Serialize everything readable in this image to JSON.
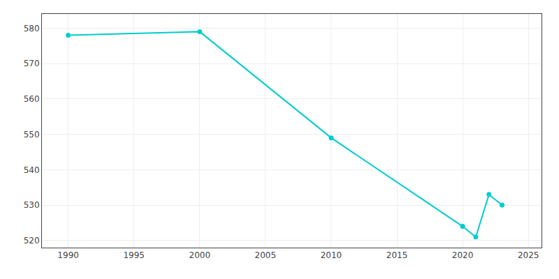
{
  "chart_data": {
    "type": "line",
    "x": [
      1990,
      2000,
      2010,
      2020,
      2021,
      2022,
      2023
    ],
    "values": [
      578,
      579,
      549,
      524,
      521,
      533,
      530
    ],
    "color": "#00CDCD",
    "marker": "circle",
    "xlim": [
      1988,
      2026
    ],
    "ylim": [
      518,
      584
    ],
    "xticks": [
      1990,
      1995,
      2000,
      2005,
      2010,
      2015,
      2020,
      2025
    ],
    "yticks": [
      520,
      530,
      540,
      550,
      560,
      570,
      580
    ],
    "grid": true
  }
}
